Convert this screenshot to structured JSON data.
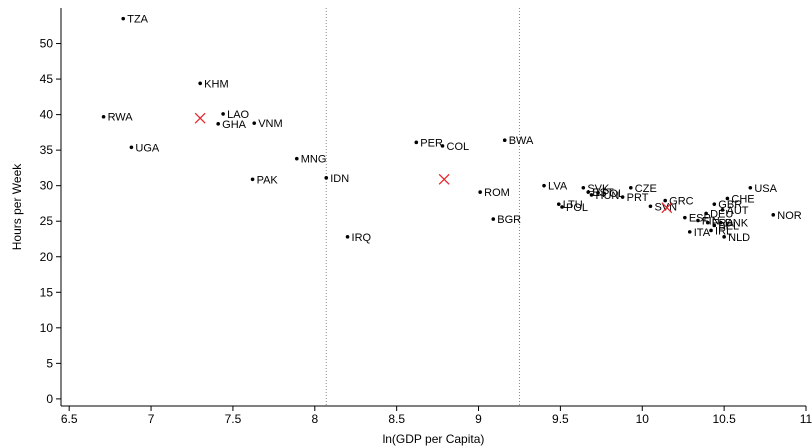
{
  "chart_data": {
    "type": "scatter",
    "title": "",
    "xlabel": "ln(GDP per Capita)",
    "ylabel": "Hours per Week",
    "xlim": [
      6.45,
      11.0
    ],
    "ylim": [
      -1,
      55
    ],
    "xticks": [
      6.5,
      7,
      7.5,
      8,
      8.5,
      9,
      9.5,
      10,
      10.5,
      11
    ],
    "xtick_labels": [
      "6.5",
      "7",
      "7.5",
      "8",
      "8.5",
      "9",
      "9.5",
      "10",
      "10.5",
      "11"
    ],
    "yticks": [
      0,
      5,
      10,
      15,
      20,
      25,
      30,
      35,
      40,
      45,
      50
    ],
    "ytick_labels": [
      "0",
      "5",
      "10",
      "15",
      "20",
      "25",
      "30",
      "35",
      "40",
      "45",
      "50"
    ],
    "grid": false,
    "vlines": [
      8.07,
      9.25
    ],
    "colors": {
      "points": "#000000",
      "means": "#e8262b",
      "vlines": "#888888"
    },
    "points": [
      {
        "label": "TZA",
        "x": 6.83,
        "y": 53.5
      },
      {
        "label": "KHM",
        "x": 7.3,
        "y": 44.4
      },
      {
        "label": "LAO",
        "x": 7.44,
        "y": 40.1
      },
      {
        "label": "RWA",
        "x": 6.71,
        "y": 39.7
      },
      {
        "label": "GHA",
        "x": 7.41,
        "y": 38.7
      },
      {
        "label": "VNM",
        "x": 7.63,
        "y": 38.8
      },
      {
        "label": "UGA",
        "x": 6.88,
        "y": 35.4
      },
      {
        "label": "MNG",
        "x": 7.89,
        "y": 33.8
      },
      {
        "label": "PAK",
        "x": 7.62,
        "y": 30.9
      },
      {
        "label": "IDN",
        "x": 8.07,
        "y": 31.1
      },
      {
        "label": "IRQ",
        "x": 8.2,
        "y": 22.8
      },
      {
        "label": "PER",
        "x": 8.62,
        "y": 36.1
      },
      {
        "label": "COL",
        "x": 8.78,
        "y": 35.6
      },
      {
        "label": "BWA",
        "x": 9.16,
        "y": 36.4
      },
      {
        "label": "ROM",
        "x": 9.01,
        "y": 29.1
      },
      {
        "label": "BGR",
        "x": 9.09,
        "y": 25.3
      },
      {
        "label": "LVA",
        "x": 9.4,
        "y": 30.0
      },
      {
        "label": "SVK",
        "x": 9.64,
        "y": 29.7
      },
      {
        "label": "CZE",
        "x": 9.93,
        "y": 29.7
      },
      {
        "label": "EST",
        "x": 9.67,
        "y": 29.1
      },
      {
        "label": "HUN",
        "x": 9.69,
        "y": 28.7
      },
      {
        "label": "POL",
        "x": 9.73,
        "y": 29.0
      },
      {
        "label": "PRT",
        "x": 9.88,
        "y": 28.4
      },
      {
        "label": "LTU",
        "x": 9.49,
        "y": 27.4
      },
      {
        "label": "POL",
        "x": 9.51,
        "y": 27.0
      },
      {
        "label": "SVN",
        "x": 10.05,
        "y": 27.1
      },
      {
        "label": "GRC",
        "x": 10.14,
        "y": 27.9
      },
      {
        "label": "USA",
        "x": 10.66,
        "y": 29.7
      },
      {
        "label": "CHE",
        "x": 10.52,
        "y": 28.2
      },
      {
        "label": "GBR",
        "x": 10.44,
        "y": 27.4
      },
      {
        "label": "AUT",
        "x": 10.49,
        "y": 26.6
      },
      {
        "label": "DEU",
        "x": 10.39,
        "y": 26.1
      },
      {
        "label": "ESP",
        "x": 10.26,
        "y": 25.5
      },
      {
        "label": "FIN",
        "x": 10.34,
        "y": 25.1
      },
      {
        "label": "FRA",
        "x": 10.4,
        "y": 24.8
      },
      {
        "label": "DNK",
        "x": 10.48,
        "y": 24.8
      },
      {
        "label": "BEL",
        "x": 10.44,
        "y": 24.4
      },
      {
        "label": "ITA",
        "x": 10.29,
        "y": 23.5
      },
      {
        "label": "IRL",
        "x": 10.42,
        "y": 23.7
      },
      {
        "label": "NLD",
        "x": 10.5,
        "y": 22.8
      },
      {
        "label": "NOR",
        "x": 10.8,
        "y": 25.9
      }
    ],
    "means": [
      {
        "x": 7.3,
        "y": 39.5
      },
      {
        "x": 8.79,
        "y": 30.9
      },
      {
        "x": 10.15,
        "y": 26.9
      }
    ]
  }
}
